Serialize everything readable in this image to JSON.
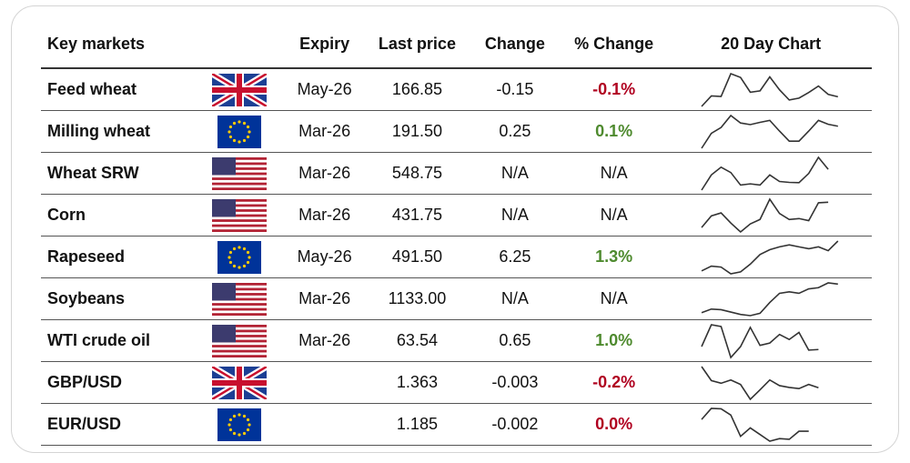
{
  "headers": {
    "market": "Key markets",
    "expiry": "Expiry",
    "last": "Last price",
    "change": "Change",
    "pct": "% Change",
    "chart": "20 Day Chart"
  },
  "colors": {
    "negative": "#b00020",
    "positive": "#4e8a2e"
  },
  "rows": [
    {
      "name": "Feed wheat",
      "flag": "uk-flag",
      "expiry": "May-26",
      "last": "166.85",
      "change": "-0.15",
      "pct": "-0.1%",
      "dir": "neg",
      "spark": [
        13,
        52,
        50,
        135,
        121,
        66,
        71,
        123,
        75,
        37,
        44,
        65,
        89,
        58,
        49
      ]
    },
    {
      "name": "Milling wheat",
      "flag": "eu-flag",
      "expiry": "Mar-26",
      "last": "191.50",
      "change": "0.25",
      "pct": "0.1%",
      "dir": "pos",
      "spark": [
        12,
        58,
        76,
        113,
        90,
        85,
        92,
        98,
        65,
        34,
        34,
        65,
        98,
        86,
        80
      ]
    },
    {
      "name": "Wheat SRW",
      "flag": "us-flag",
      "expiry": "Mar-26",
      "last": "548.75",
      "change": "N/A",
      "pct": "N/A",
      "dir": "",
      "spark": [
        11,
        62,
        88,
        70,
        28,
        32,
        28,
        62,
        40,
        37,
        36,
        67,
        121,
        81
      ]
    },
    {
      "name": "Corn",
      "flag": "us-flag",
      "expiry": "Mar-26",
      "last": "431.75",
      "change": "N/A",
      "pct": "N/A",
      "dir": "",
      "spark": [
        28,
        67,
        77,
        43,
        13,
        40,
        55,
        123,
        75,
        55,
        58,
        51,
        111,
        113
      ]
    },
    {
      "name": "Rapeseed",
      "flag": "eu-flag",
      "expiry": "May-26",
      "last": "491.50",
      "change": "6.25",
      "pct": "1.3%",
      "dir": "pos",
      "spark": [
        8,
        13,
        12,
        5,
        7,
        15,
        25,
        30,
        33,
        35,
        33,
        31,
        33,
        29,
        39
      ]
    },
    {
      "name": "Soybeans",
      "flag": "us-flag",
      "expiry": "Mar-26",
      "last": "1133.00",
      "change": "N/A",
      "pct": "N/A",
      "dir": "",
      "spark": [
        22,
        34,
        32,
        24,
        16,
        12,
        20,
        56,
        87,
        92,
        87,
        102,
        106,
        122,
        118
      ]
    },
    {
      "name": "WTI crude oil",
      "flag": "us-flag",
      "expiry": "Mar-26",
      "last": "63.54",
      "change": "0.65",
      "pct": "1.0%",
      "dir": "pos",
      "spark": [
        52,
        126,
        120,
        15,
        52,
        117,
        56,
        64,
        93,
        76,
        100,
        40,
        42
      ]
    },
    {
      "name": "GBP/USD",
      "flag": "uk-flag",
      "expiry": "",
      "last": "1.363",
      "change": "-0.003",
      "pct": "-0.2%",
      "dir": "neg",
      "spark": [
        125,
        78,
        69,
        80,
        65,
        15,
        47,
        80,
        61,
        55,
        51,
        65,
        54
      ]
    },
    {
      "name": "EUR/USD",
      "flag": "eu-flag",
      "expiry": "",
      "last": "1.185",
      "change": "-0.002",
      "pct": "0.0%",
      "dir": "neg",
      "spark": [
        73,
        103,
        102,
        85,
        27,
        50,
        32,
        14,
        21,
        19,
        41,
        41
      ]
    }
  ]
}
